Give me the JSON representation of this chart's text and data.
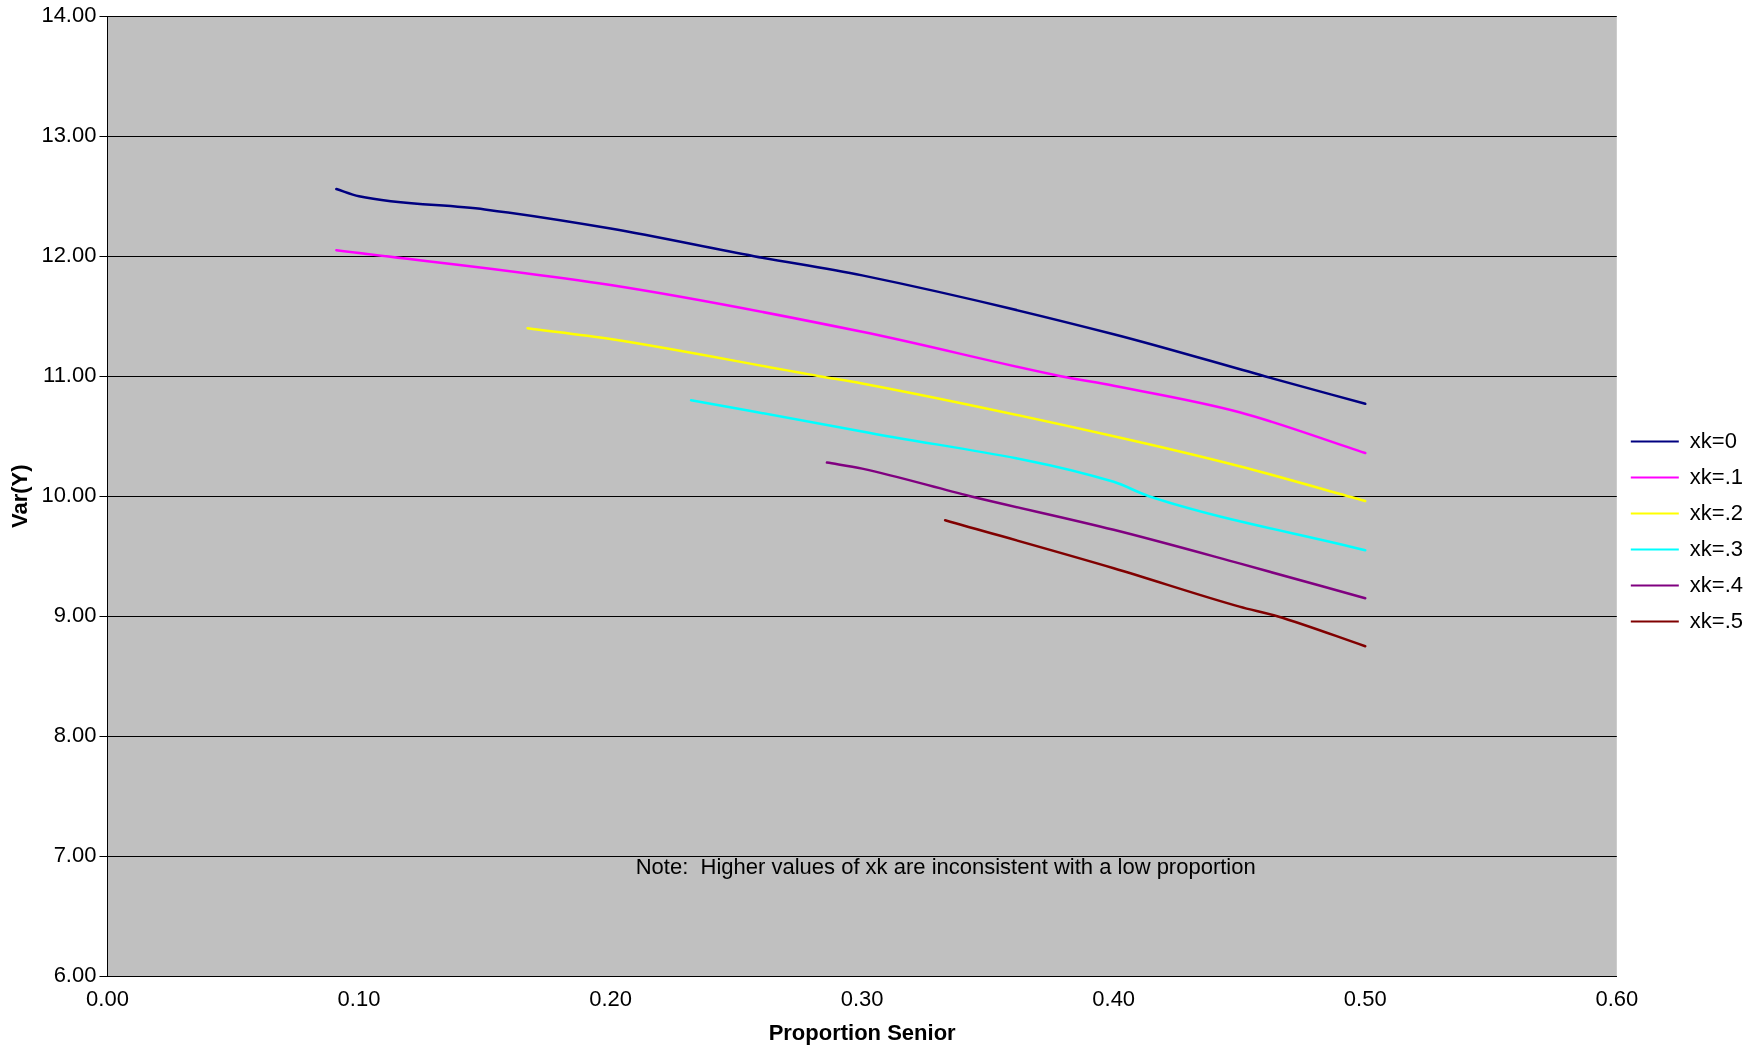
{
  "chart_data": {
    "type": "line",
    "xlabel": "Proportion Senior",
    "ylabel": "Var(Y)",
    "xlim": [
      0,
      0.6
    ],
    "ylim": [
      6,
      14
    ],
    "xticks": [
      {
        "value": 0,
        "label": "0.00"
      },
      {
        "value": 0.1,
        "label": "0.10"
      },
      {
        "value": 0.2,
        "label": "0.20"
      },
      {
        "value": 0.3,
        "label": "0.30"
      },
      {
        "value": 0.4,
        "label": "0.40"
      },
      {
        "value": 0.5,
        "label": "0.50"
      },
      {
        "value": 0.6,
        "label": "0.60"
      }
    ],
    "yticks": [
      {
        "value": 6,
        "label": "6.00"
      },
      {
        "value": 7,
        "label": "7.00"
      },
      {
        "value": 8,
        "label": "8.00"
      },
      {
        "value": 9,
        "label": "9.00"
      },
      {
        "value": 10,
        "label": "10.00"
      },
      {
        "value": 11,
        "label": "11.00"
      },
      {
        "value": 12,
        "label": "12.00"
      },
      {
        "value": 13,
        "label": "13.00"
      },
      {
        "value": 14,
        "label": "14.00"
      }
    ],
    "grid": "y",
    "legend": "right",
    "marker": "none",
    "line_style": "solid",
    "annotations": [
      "Note:  Higher values of xk are inconsistent with a low proportion"
    ],
    "series": [
      {
        "name": "xk=0",
        "color": "#000080",
        "x": [
          0.091,
          0.1,
          0.15,
          0.2,
          0.257,
          0.3,
          0.4,
          0.46,
          0.5
        ],
        "values": [
          12.56,
          12.5,
          12.39,
          12.23,
          12.0,
          11.84,
          11.35,
          11.0,
          10.77
        ]
      },
      {
        "name": "xk=.1",
        "color": "#ff00ff",
        "x": [
          0.091,
          0.2,
          0.3,
          0.379,
          0.4,
          0.45,
          0.5
        ],
        "values": [
          12.05,
          11.76,
          11.37,
          11.0,
          10.92,
          10.7,
          10.36
        ]
      },
      {
        "name": "xk=.2",
        "color": "#ffff00",
        "x": [
          0.167,
          0.2,
          0.283,
          0.3,
          0.4,
          0.45,
          0.5
        ],
        "values": [
          11.4,
          11.31,
          11.0,
          10.94,
          10.5,
          10.25,
          9.96
        ]
      },
      {
        "name": "xk=.3",
        "color": "#00ffff",
        "x": [
          0.232,
          0.3,
          0.4,
          0.414,
          0.5
        ],
        "values": [
          10.8,
          10.54,
          10.12,
          10.0,
          9.55
        ]
      },
      {
        "name": "xk=.4",
        "color": "#800080",
        "x": [
          0.286,
          0.3,
          0.343,
          0.4,
          0.45,
          0.5
        ],
        "values": [
          10.28,
          10.23,
          10.0,
          9.72,
          9.44,
          9.15
        ]
      },
      {
        "name": "xk=.5",
        "color": "#800000",
        "x": [
          0.333,
          0.4,
          0.45,
          0.465,
          0.5
        ],
        "values": [
          9.8,
          9.4,
          9.08,
          9.0,
          8.75
        ]
      }
    ]
  }
}
